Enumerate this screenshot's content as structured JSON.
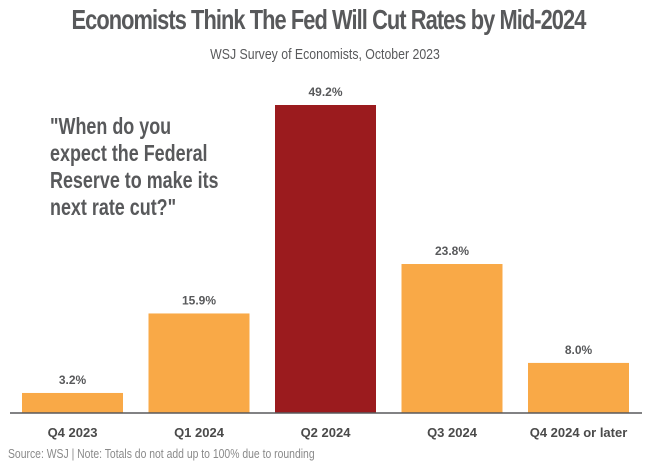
{
  "chart_data": {
    "type": "bar",
    "title": "Economists Think The Fed Will Cut Rates by Mid-2024",
    "subtitle": "WSJ Survey of Economists, October 2023",
    "annotation": "\"When do you\nexpect the Federal\nReserve to make its\nnext rate cut?\"",
    "xlabel": "",
    "ylabel": "",
    "categories": [
      "Q4 2023",
      "Q1 2024",
      "Q2 2024",
      "Q3 2024",
      "Q4 2024 or later"
    ],
    "values": [
      3.2,
      15.9,
      49.2,
      23.8,
      8.0
    ],
    "data_labels": [
      "3.2%",
      "15.9%",
      "49.2%",
      "23.8%",
      "8.0%"
    ],
    "highlight_index": 2,
    "ylim": [
      0,
      49.2
    ],
    "grid": false,
    "legend": "none",
    "source": "Source: WSJ | Note: Totals do not add up to 100% due to rounding"
  },
  "colors": {
    "bar": "#f9a947",
    "highlight": "#9b1b1e",
    "axis": "#58595b",
    "text": "#58595b"
  }
}
